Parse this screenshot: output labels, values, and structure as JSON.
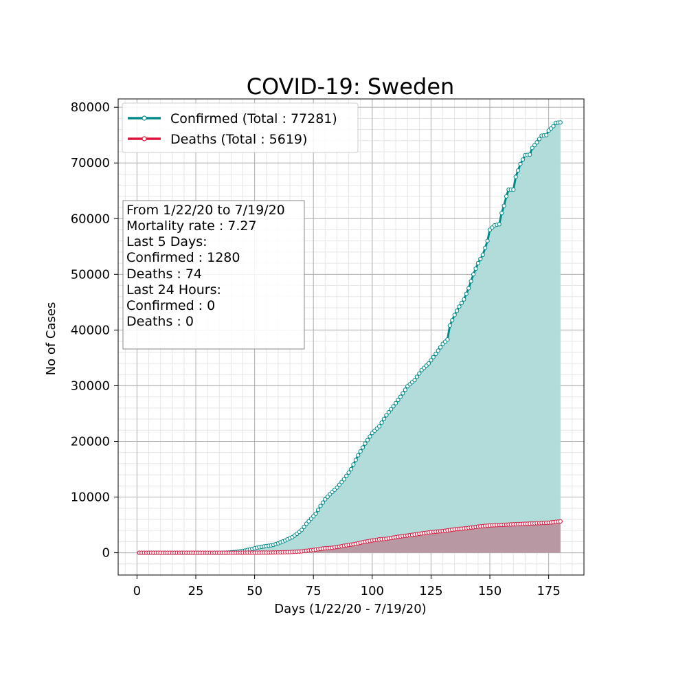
{
  "chart_data": {
    "type": "line",
    "title": "COVID-19: Sweden",
    "xlabel": "Days (1/22/20 - 7/19/20)",
    "ylabel": "No of Cases",
    "xlim": [
      -8,
      190
    ],
    "ylim": [
      -4000,
      81500
    ],
    "xticks": [
      0,
      25,
      50,
      75,
      100,
      125,
      150,
      175
    ],
    "yticks": [
      0,
      10000,
      20000,
      30000,
      40000,
      50000,
      60000,
      70000,
      80000
    ],
    "grid": true,
    "legend_position": "top-left",
    "colors": {
      "confirmed_line": "#008b8b",
      "confirmed_fill": "#b2dcda",
      "deaths_line": "#dc143c",
      "deaths_fill": "#b98c98",
      "grid_major": "#b0b0b0",
      "grid_minor": "#e6e6e6"
    },
    "series": [
      {
        "name": "Confirmed (Total : 77281)",
        "key": "confirmed",
        "points": [
          [
            1,
            0
          ],
          [
            10,
            1
          ],
          [
            20,
            1
          ],
          [
            30,
            1
          ],
          [
            36,
            2
          ],
          [
            38,
            15
          ],
          [
            40,
            80
          ],
          [
            43,
            200
          ],
          [
            46,
            400
          ],
          [
            48,
            600
          ],
          [
            50,
            800
          ],
          [
            52,
            1000
          ],
          [
            55,
            1200
          ],
          [
            58,
            1400
          ],
          [
            60,
            1700
          ],
          [
            63,
            2200
          ],
          [
            66,
            2800
          ],
          [
            68,
            3400
          ],
          [
            70,
            4100
          ],
          [
            72,
            5200
          ],
          [
            74,
            6100
          ],
          [
            76,
            7000
          ],
          [
            78,
            8400
          ],
          [
            80,
            9600
          ],
          [
            82,
            10500
          ],
          [
            85,
            11700
          ],
          [
            88,
            13200
          ],
          [
            91,
            15000
          ],
          [
            94,
            17500
          ],
          [
            97,
            19600
          ],
          [
            100,
            21500
          ],
          [
            103,
            22700
          ],
          [
            106,
            24700
          ],
          [
            109,
            26300
          ],
          [
            112,
            28000
          ],
          [
            115,
            29900
          ],
          [
            118,
            31000
          ],
          [
            121,
            32800
          ],
          [
            124,
            34000
          ],
          [
            127,
            35700
          ],
          [
            130,
            37500
          ],
          [
            132,
            38300
          ],
          [
            133,
            40800
          ],
          [
            135,
            42700
          ],
          [
            137,
            44200
          ],
          [
            139,
            45500
          ],
          [
            141,
            47500
          ],
          [
            143,
            50000
          ],
          [
            145,
            52000
          ],
          [
            147,
            53500
          ],
          [
            149,
            56000
          ],
          [
            150,
            58000
          ],
          [
            152,
            58800
          ],
          [
            154,
            59000
          ],
          [
            155,
            61000
          ],
          [
            156,
            62300
          ],
          [
            157,
            64000
          ],
          [
            158,
            65200
          ],
          [
            160,
            65200
          ],
          [
            161,
            67500
          ],
          [
            163,
            69800
          ],
          [
            164,
            70600
          ],
          [
            165,
            71400
          ],
          [
            167,
            71500
          ],
          [
            168,
            72700
          ],
          [
            170,
            73700
          ],
          [
            172,
            74900
          ],
          [
            174,
            75000
          ],
          [
            175,
            75800
          ],
          [
            177,
            76600
          ],
          [
            178,
            77200
          ],
          [
            180,
            77281
          ]
        ]
      },
      {
        "name": "Deaths (Total : 5619)",
        "key": "deaths",
        "points": [
          [
            1,
            0
          ],
          [
            40,
            0
          ],
          [
            50,
            10
          ],
          [
            55,
            20
          ],
          [
            60,
            60
          ],
          [
            65,
            120
          ],
          [
            70,
            250
          ],
          [
            73,
            400
          ],
          [
            75,
            500
          ],
          [
            78,
            700
          ],
          [
            80,
            800
          ],
          [
            83,
            900
          ],
          [
            86,
            1100
          ],
          [
            90,
            1400
          ],
          [
            93,
            1600
          ],
          [
            96,
            1900
          ],
          [
            100,
            2200
          ],
          [
            103,
            2400
          ],
          [
            106,
            2500
          ],
          [
            110,
            2800
          ],
          [
            115,
            3100
          ],
          [
            120,
            3400
          ],
          [
            125,
            3700
          ],
          [
            130,
            3900
          ],
          [
            135,
            4200
          ],
          [
            140,
            4400
          ],
          [
            145,
            4700
          ],
          [
            150,
            4900
          ],
          [
            155,
            5000
          ],
          [
            160,
            5100
          ],
          [
            165,
            5200
          ],
          [
            170,
            5300
          ],
          [
            175,
            5400
          ],
          [
            178,
            5550
          ],
          [
            180,
            5619
          ]
        ]
      }
    ],
    "info_box": [
      "From 1/22/20 to 7/19/20",
      "Mortality rate : 7.27",
      "Last 5 Days:",
      "Confirmed : 1280",
      "Deaths : 74",
      "Last 24 Hours:",
      "Confirmed : 0",
      "Deaths : 0"
    ]
  }
}
